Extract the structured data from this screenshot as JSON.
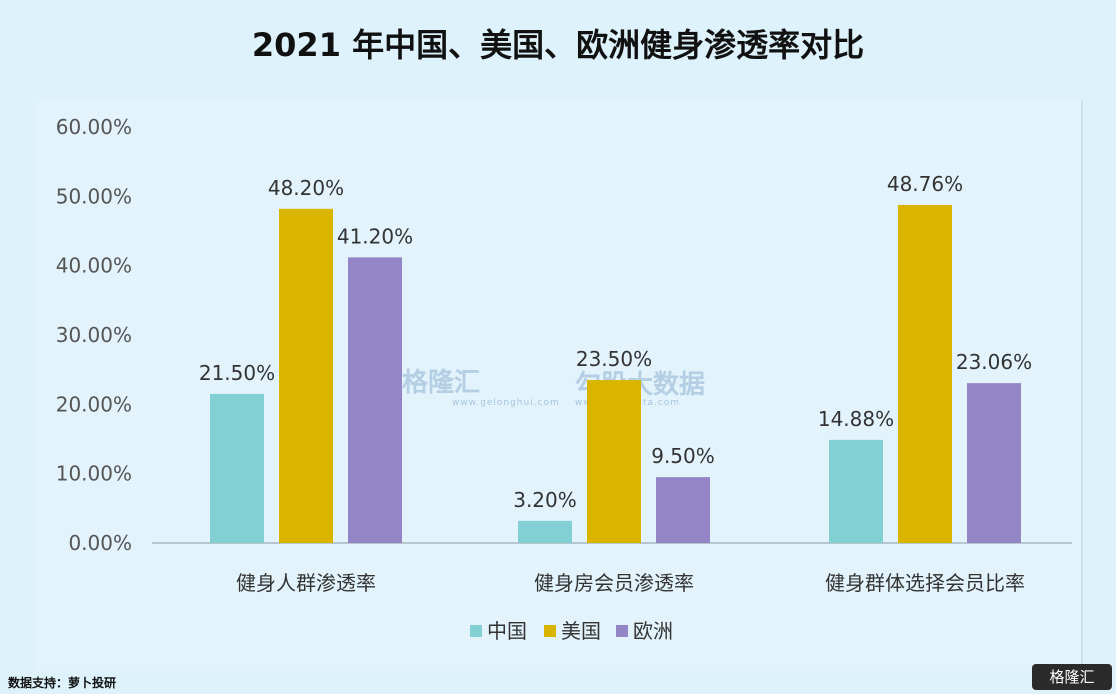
{
  "title": "2021 年中国、美国、欧洲健身渗透率对比",
  "source": "数据支持：萝卜投研",
  "brand": "格隆汇",
  "watermark": {
    "left": "格隆汇",
    "left_url": "www.gelonghui.com",
    "right": "勾股大数据",
    "right_url": "www.gogudata.com"
  },
  "chart_data": {
    "type": "bar",
    "categories": [
      "健身人群渗透率",
      "健身房会员渗透率",
      "健身群体选择会员比率"
    ],
    "series": [
      {
        "name": "中国",
        "color": "#83d0d4",
        "values": [
          21.5,
          3.2,
          14.88
        ],
        "labels": [
          "21.50%",
          "3.20%",
          "14.88%"
        ]
      },
      {
        "name": "美国",
        "color": "#dab500",
        "values": [
          48.2,
          23.5,
          48.76
        ],
        "labels": [
          "48.20%",
          "23.50%",
          "48.76%"
        ]
      },
      {
        "name": "欧洲",
        "color": "#9385c6",
        "values": [
          41.2,
          9.5,
          23.06
        ],
        "labels": [
          "41.20%",
          "9.50%",
          "23.06%"
        ]
      }
    ],
    "yticks": [
      "0.00%",
      "10.00%",
      "20.00%",
      "30.00%",
      "40.00%",
      "50.00%",
      "60.00%"
    ],
    "ylim": [
      0,
      60
    ],
    "legend_position": "bottom"
  }
}
